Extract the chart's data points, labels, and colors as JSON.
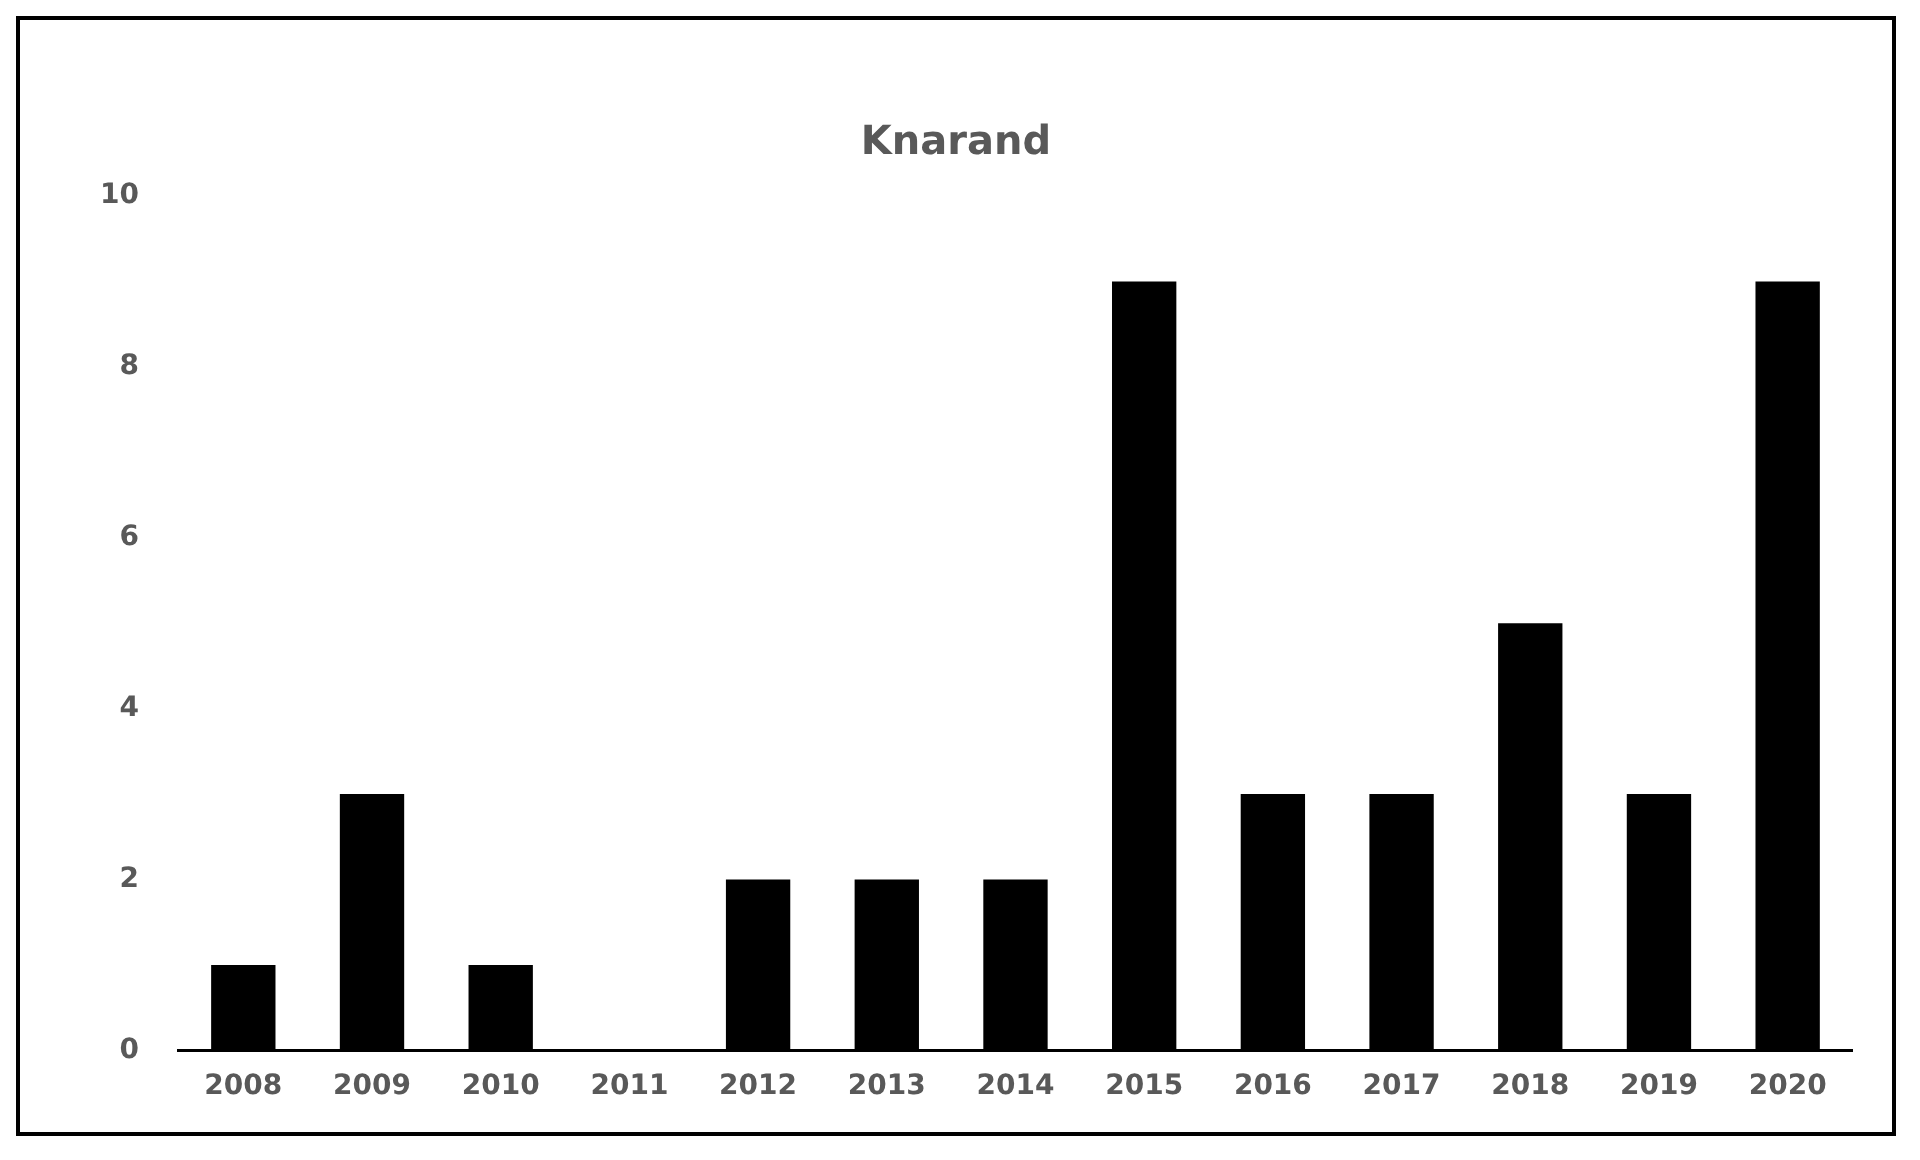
{
  "chart_data": {
    "type": "bar",
    "title": "Knarand",
    "categories": [
      "2008",
      "2009",
      "2010",
      "2011",
      "2012",
      "2013",
      "2014",
      "2015",
      "2016",
      "2017",
      "2018",
      "2019",
      "2020"
    ],
    "values": [
      1,
      3,
      1,
      0,
      2,
      2,
      2,
      9,
      3,
      3,
      5,
      3,
      9
    ],
    "color": "#000000",
    "ylim": [
      0,
      10
    ],
    "yticks": [
      0,
      2,
      4,
      6,
      8,
      10
    ],
    "grid": false,
    "legend": false
  }
}
